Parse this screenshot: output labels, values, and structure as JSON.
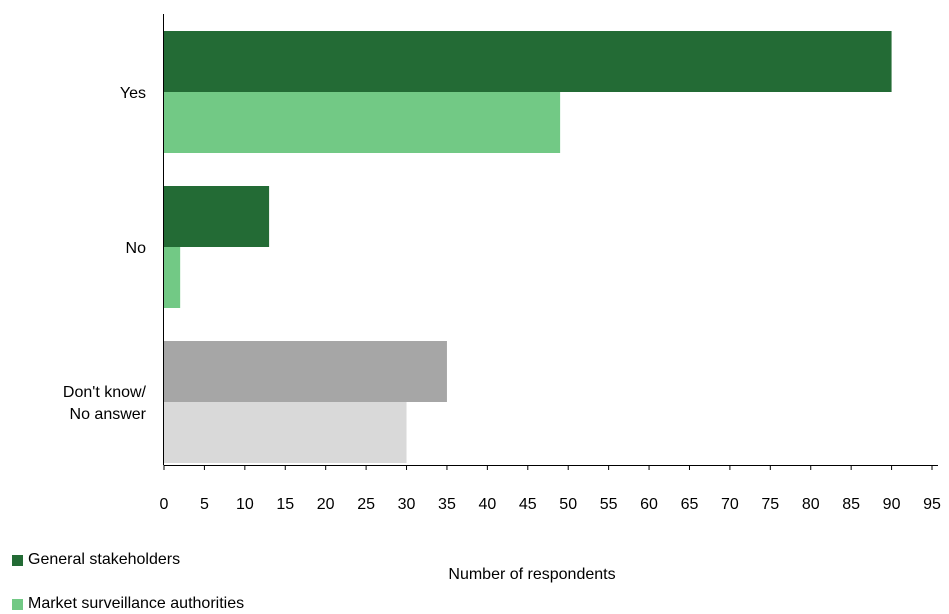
{
  "chart_data": {
    "type": "bar",
    "orientation": "horizontal",
    "categories": [
      "Yes",
      "No",
      "Don't know/\nNo answer"
    ],
    "series": [
      {
        "name": "General stakeholders",
        "values": [
          90,
          13,
          35
        ],
        "color": "#236b35"
      },
      {
        "name": "Market surveillance authorities",
        "values": [
          49,
          2,
          30
        ],
        "color": "#72c985"
      }
    ],
    "category_override_colors": {
      "Don't know/\nNo answer": [
        "#a6a6a6",
        "#d9d9d9"
      ]
    },
    "xlabel": "Number of respondents",
    "ylabel": "",
    "xlim": [
      0,
      95
    ],
    "xticks": [
      0,
      5,
      10,
      15,
      20,
      25,
      30,
      35,
      40,
      45,
      50,
      55,
      60,
      65,
      70,
      75,
      80,
      85,
      90,
      95
    ],
    "grid": false,
    "legend_placement": "bottom-left"
  }
}
